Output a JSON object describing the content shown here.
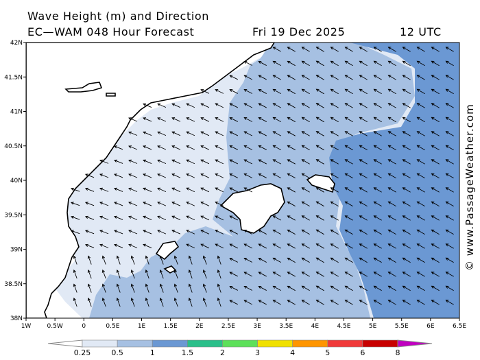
{
  "title": {
    "line1": "Wave Height (m) and Direction",
    "line2": "EC—WAM 048 Hour Forecast",
    "date": "Fri 19 Dec 2025",
    "time": "12 UTC"
  },
  "axes": {
    "x_ticks": [
      "1W",
      "0.5W",
      "0",
      "0.5E",
      "1E",
      "1.5E",
      "2E",
      "2.5E",
      "3E",
      "3.5E",
      "4E",
      "4.5E",
      "5E",
      "5.5E",
      "6E",
      "6.5E"
    ],
    "y_ticks": [
      "42N",
      "41.5N",
      "41N",
      "40.5N",
      "40N",
      "39.5N",
      "39N",
      "38.5N",
      "38N"
    ],
    "lon_range": [
      -1,
      6.5
    ],
    "lat_range": [
      38,
      42
    ]
  },
  "legend": {
    "labels": [
      "0.25",
      "0.5",
      "1",
      "1.5",
      "2",
      "3",
      "4",
      "5",
      "6",
      "8"
    ],
    "colors": [
      "#e1e9f5",
      "#a6c0e2",
      "#6b98d3",
      "#2bbf8a",
      "#5de05a",
      "#f0e000",
      "#ff9500",
      "#f03a3a",
      "#c80000",
      "#c000c0"
    ]
  },
  "credit": "© www.PassageWeather.com",
  "map_colors": {
    "land": "#ffffff",
    "band_lt_05": "#e1e9f5",
    "band_05_1": "#a6c0e2",
    "band_1_15": "#6b98d3",
    "arrow": "#000000"
  },
  "labels_geo": {
    "mallorca": "",
    "menorca": "",
    "ibiza": ""
  }
}
